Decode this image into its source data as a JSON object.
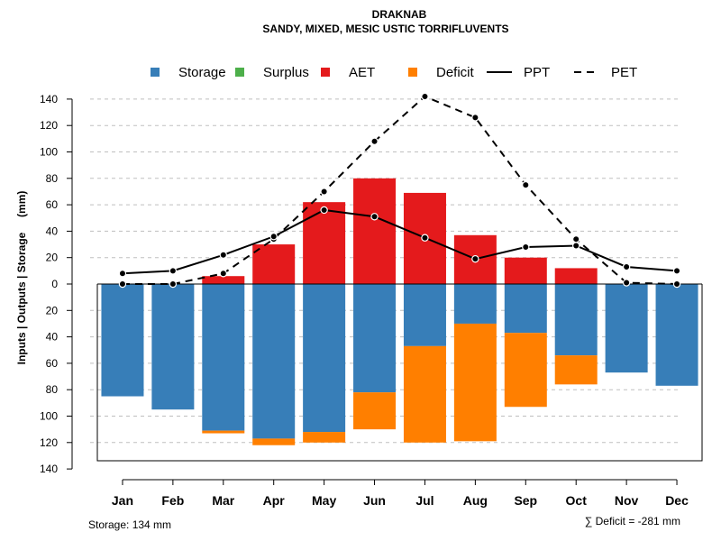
{
  "chart_data": {
    "type": "bar",
    "title": "DRAKNAB",
    "subtitle": "SANDY, MIXED, MESIC USTIC TORRIFLUVENTS",
    "ylabel": "Inputs | Outputs | Storage     (mm)",
    "ylim": [
      -140,
      150
    ],
    "yticks": [
      140,
      120,
      100,
      80,
      60,
      40,
      20,
      0,
      -20,
      -40,
      -60,
      -80,
      -100,
      -120,
      -140
    ],
    "ytick_labels": [
      "140",
      "120",
      "100",
      "80",
      "60",
      "40",
      "20",
      "0",
      "20",
      "40",
      "60",
      "80",
      "100",
      "120",
      "140"
    ],
    "categories": [
      "Jan",
      "Feb",
      "Mar",
      "Apr",
      "May",
      "Jun",
      "Jul",
      "Aug",
      "Sep",
      "Oct",
      "Nov",
      "Dec"
    ],
    "series": [
      {
        "name": "Storage",
        "color": "#377EB8",
        "values": [
          -85,
          -95,
          -111,
          -117,
          -112,
          -82,
          -47,
          -30,
          -37,
          -54,
          -67,
          -77
        ]
      },
      {
        "name": "Surplus",
        "color": "#4DAF4A",
        "values": [
          0,
          0,
          0,
          0,
          0,
          0,
          0,
          0,
          0,
          0,
          0,
          0
        ]
      },
      {
        "name": "AET",
        "color": "#E41A1C",
        "values": [
          0,
          0,
          6,
          30,
          62,
          80,
          69,
          37,
          20,
          12,
          0,
          0
        ]
      },
      {
        "name": "Deficit",
        "color": "#FF7F00",
        "values": [
          0,
          0,
          -2,
          -5,
          -8,
          -28,
          -73,
          -89,
          -56,
          -22,
          0,
          0
        ]
      },
      {
        "name": "PPT",
        "style": "solid",
        "values": [
          8,
          10,
          22,
          36,
          56,
          51,
          35,
          19,
          28,
          29,
          13,
          10
        ]
      },
      {
        "name": "PET",
        "style": "dashed",
        "values": [
          0,
          0,
          8,
          34,
          70,
          108,
          142,
          126,
          75,
          34,
          1,
          0
        ]
      }
    ],
    "legend": [
      "Storage",
      "Surplus",
      "AET",
      "Deficit",
      "PPT",
      "PET"
    ],
    "legend_position": "top",
    "grid": true,
    "footnote_left": "Storage: 134 mm",
    "footnote_right": "∑ Deficit = -281 mm"
  }
}
